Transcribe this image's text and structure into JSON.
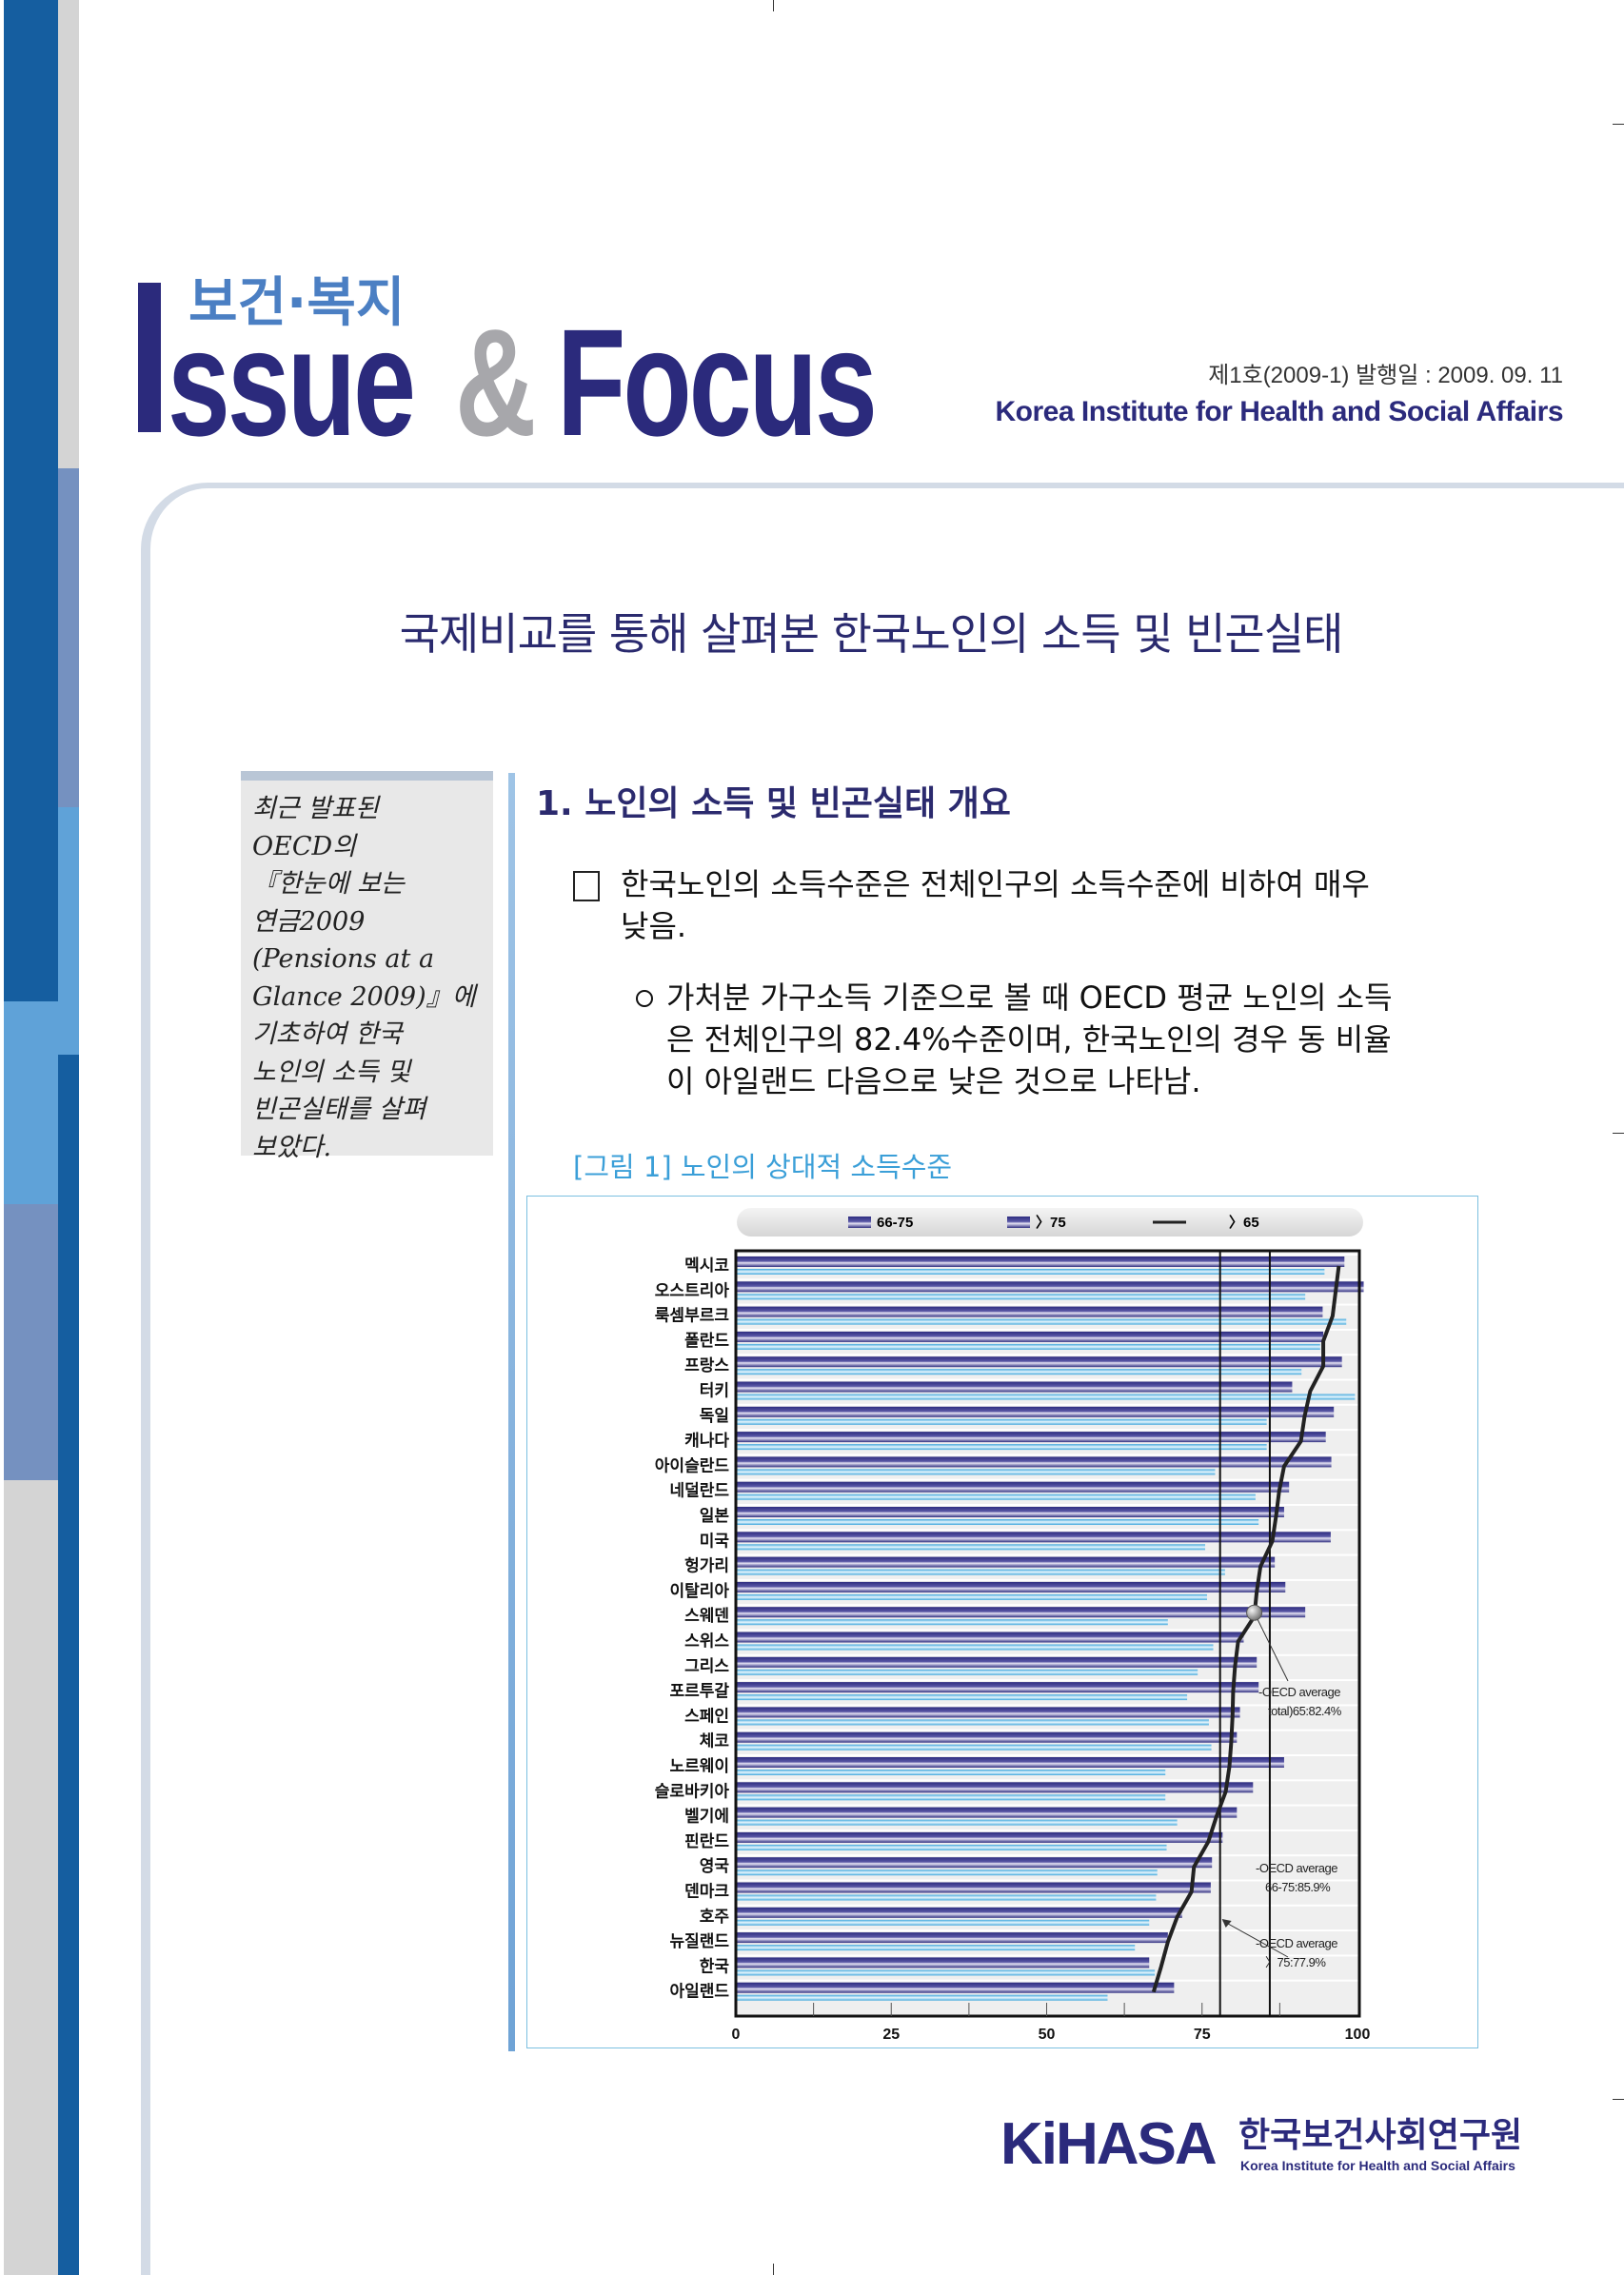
{
  "colors": {
    "navy": "#2b2a7c",
    "stripe_dark": "#155ea0",
    "stripe_light": "#5fa2d8",
    "stripe_slate": "#7591c0",
    "stripe_gray": "#d4d4d4",
    "bar_66_75": "#2e2d80",
    "bar_over75": "#3ea6dc",
    "caption": "#3b9fd8"
  },
  "header": {
    "subtitle_ko": "보건·복지",
    "logo_initial": "I",
    "logo_issue": "ssue",
    "logo_amp": "&",
    "logo_focus": "Focus",
    "issue_info": "제1호(2009-1) 발행일 : 2009. 09. 11",
    "institute_en": "Korea Institute for Health and Social Affairs"
  },
  "main_title": "국제비교를 통해 살펴본 한국노인의 소득 및 빈곤실태",
  "sidebar_note": {
    "lines": [
      "최근 발표된",
      "OECD의",
      "『한눈에 보는",
      "연금2009",
      "(Pensions at a",
      "Glance 2009)』에",
      "기초하여 한국",
      "노인의 소득 및",
      "빈곤실태를 살펴",
      "보았다."
    ]
  },
  "section": {
    "heading": "1.  노인의 소득 및 빈곤실태 개요",
    "bullet1": {
      "icon": "square-bullet-icon",
      "lines": [
        "한국노인의 소득수준은 전체인구의 소득수준에 비하여 매우",
        "낮음."
      ]
    },
    "bullet2": {
      "icon": "circle-bullet-icon",
      "lines": [
        "가처분 가구소득 기준으로 볼 때 OECD 평균 노인의 소득",
        "은 전체인구의 82.4%수준이며, 한국노인의 경우 동 비율",
        "이 아일랜드 다음으로 낮은 것으로 나타남."
      ]
    },
    "figure_caption": "[그림 1] 노인의 상대적 소득수준"
  },
  "chart_data": {
    "type": "bar",
    "orientation": "horizontal",
    "categories": [
      "멕시코",
      "오스트리아",
      "룩셈부르크",
      "폴란드",
      "프랑스",
      "터키",
      "독일",
      "캐나다",
      "아이슬란드",
      "네덜란드",
      "일본",
      "미국",
      "헝가리",
      "이탈리아",
      "스웨덴",
      "스위스",
      "그리스",
      "포르투갈",
      "스페인",
      "체코",
      "노르웨이",
      "슬로바키아",
      "벨기에",
      "핀란드",
      "영국",
      "덴마크",
      "호주",
      "뉴질랜드",
      "한국",
      "아일랜드"
    ],
    "series": [
      {
        "name": "66-75",
        "kind": "bar",
        "color": "#2e2d80",
        "values": [
          97.9,
          101,
          94.4,
          94.5,
          97.5,
          89.5,
          96.2,
          94.9,
          95.8,
          89,
          88.2,
          95.7,
          86.7,
          88.4,
          91.6,
          81.7,
          83.8,
          84.1,
          81.1,
          80.6,
          88.2,
          83.2,
          80.6,
          78.3,
          76.6,
          76.4,
          71.8,
          69.5,
          66.5,
          70.5
        ]
      },
      {
        "name": "〉75",
        "kind": "bar",
        "color": "#3ea6dc",
        "values": [
          94.7,
          91.6,
          98.2,
          94,
          91,
          99.6,
          85.4,
          85.4,
          77.1,
          83.6,
          84.1,
          75.5,
          78.7,
          75.8,
          69.5,
          76.8,
          74.3,
          72.6,
          76.1,
          76.5,
          69.1,
          69.1,
          71,
          69.3,
          67.8,
          67.6,
          66.5,
          64.2,
          67.4,
          59.8
        ]
      },
      {
        "name": "〉65",
        "kind": "line",
        "color": "#222222",
        "values": [
          97,
          96.5,
          96,
          94.5,
          94.5,
          92.4,
          91.5,
          90.9,
          88.2,
          87.4,
          86.9,
          86.3,
          84.4,
          83.8,
          83.4,
          80.8,
          80.3,
          80,
          79.9,
          79.7,
          79.4,
          78.8,
          77.3,
          76,
          73.7,
          73.3,
          71,
          69.5,
          68.4,
          67.2
        ]
      }
    ],
    "xticks": [
      "0",
      "25",
      "50",
      "75",
      "100"
    ],
    "xlim": [
      0,
      100
    ],
    "reference_lines": [
      {
        "value": 77.9,
        "label": [
          "-OECD average",
          "〉75:77.9%"
        ]
      },
      {
        "value": 85.9,
        "label": [
          "-OECD average",
          "66-75:85.9%"
        ]
      }
    ],
    "marker_annotation": {
      "category": "스웨덴",
      "value": 82.4,
      "label": [
        "-OECD average",
        "total)65:82.4%"
      ]
    },
    "legend_position": "top",
    "grid": false
  },
  "footer": {
    "logo_text": "KiHASA",
    "name_ko": "한국보건사회연구원",
    "name_en": "Korea Institute for Health and Social Affairs"
  }
}
